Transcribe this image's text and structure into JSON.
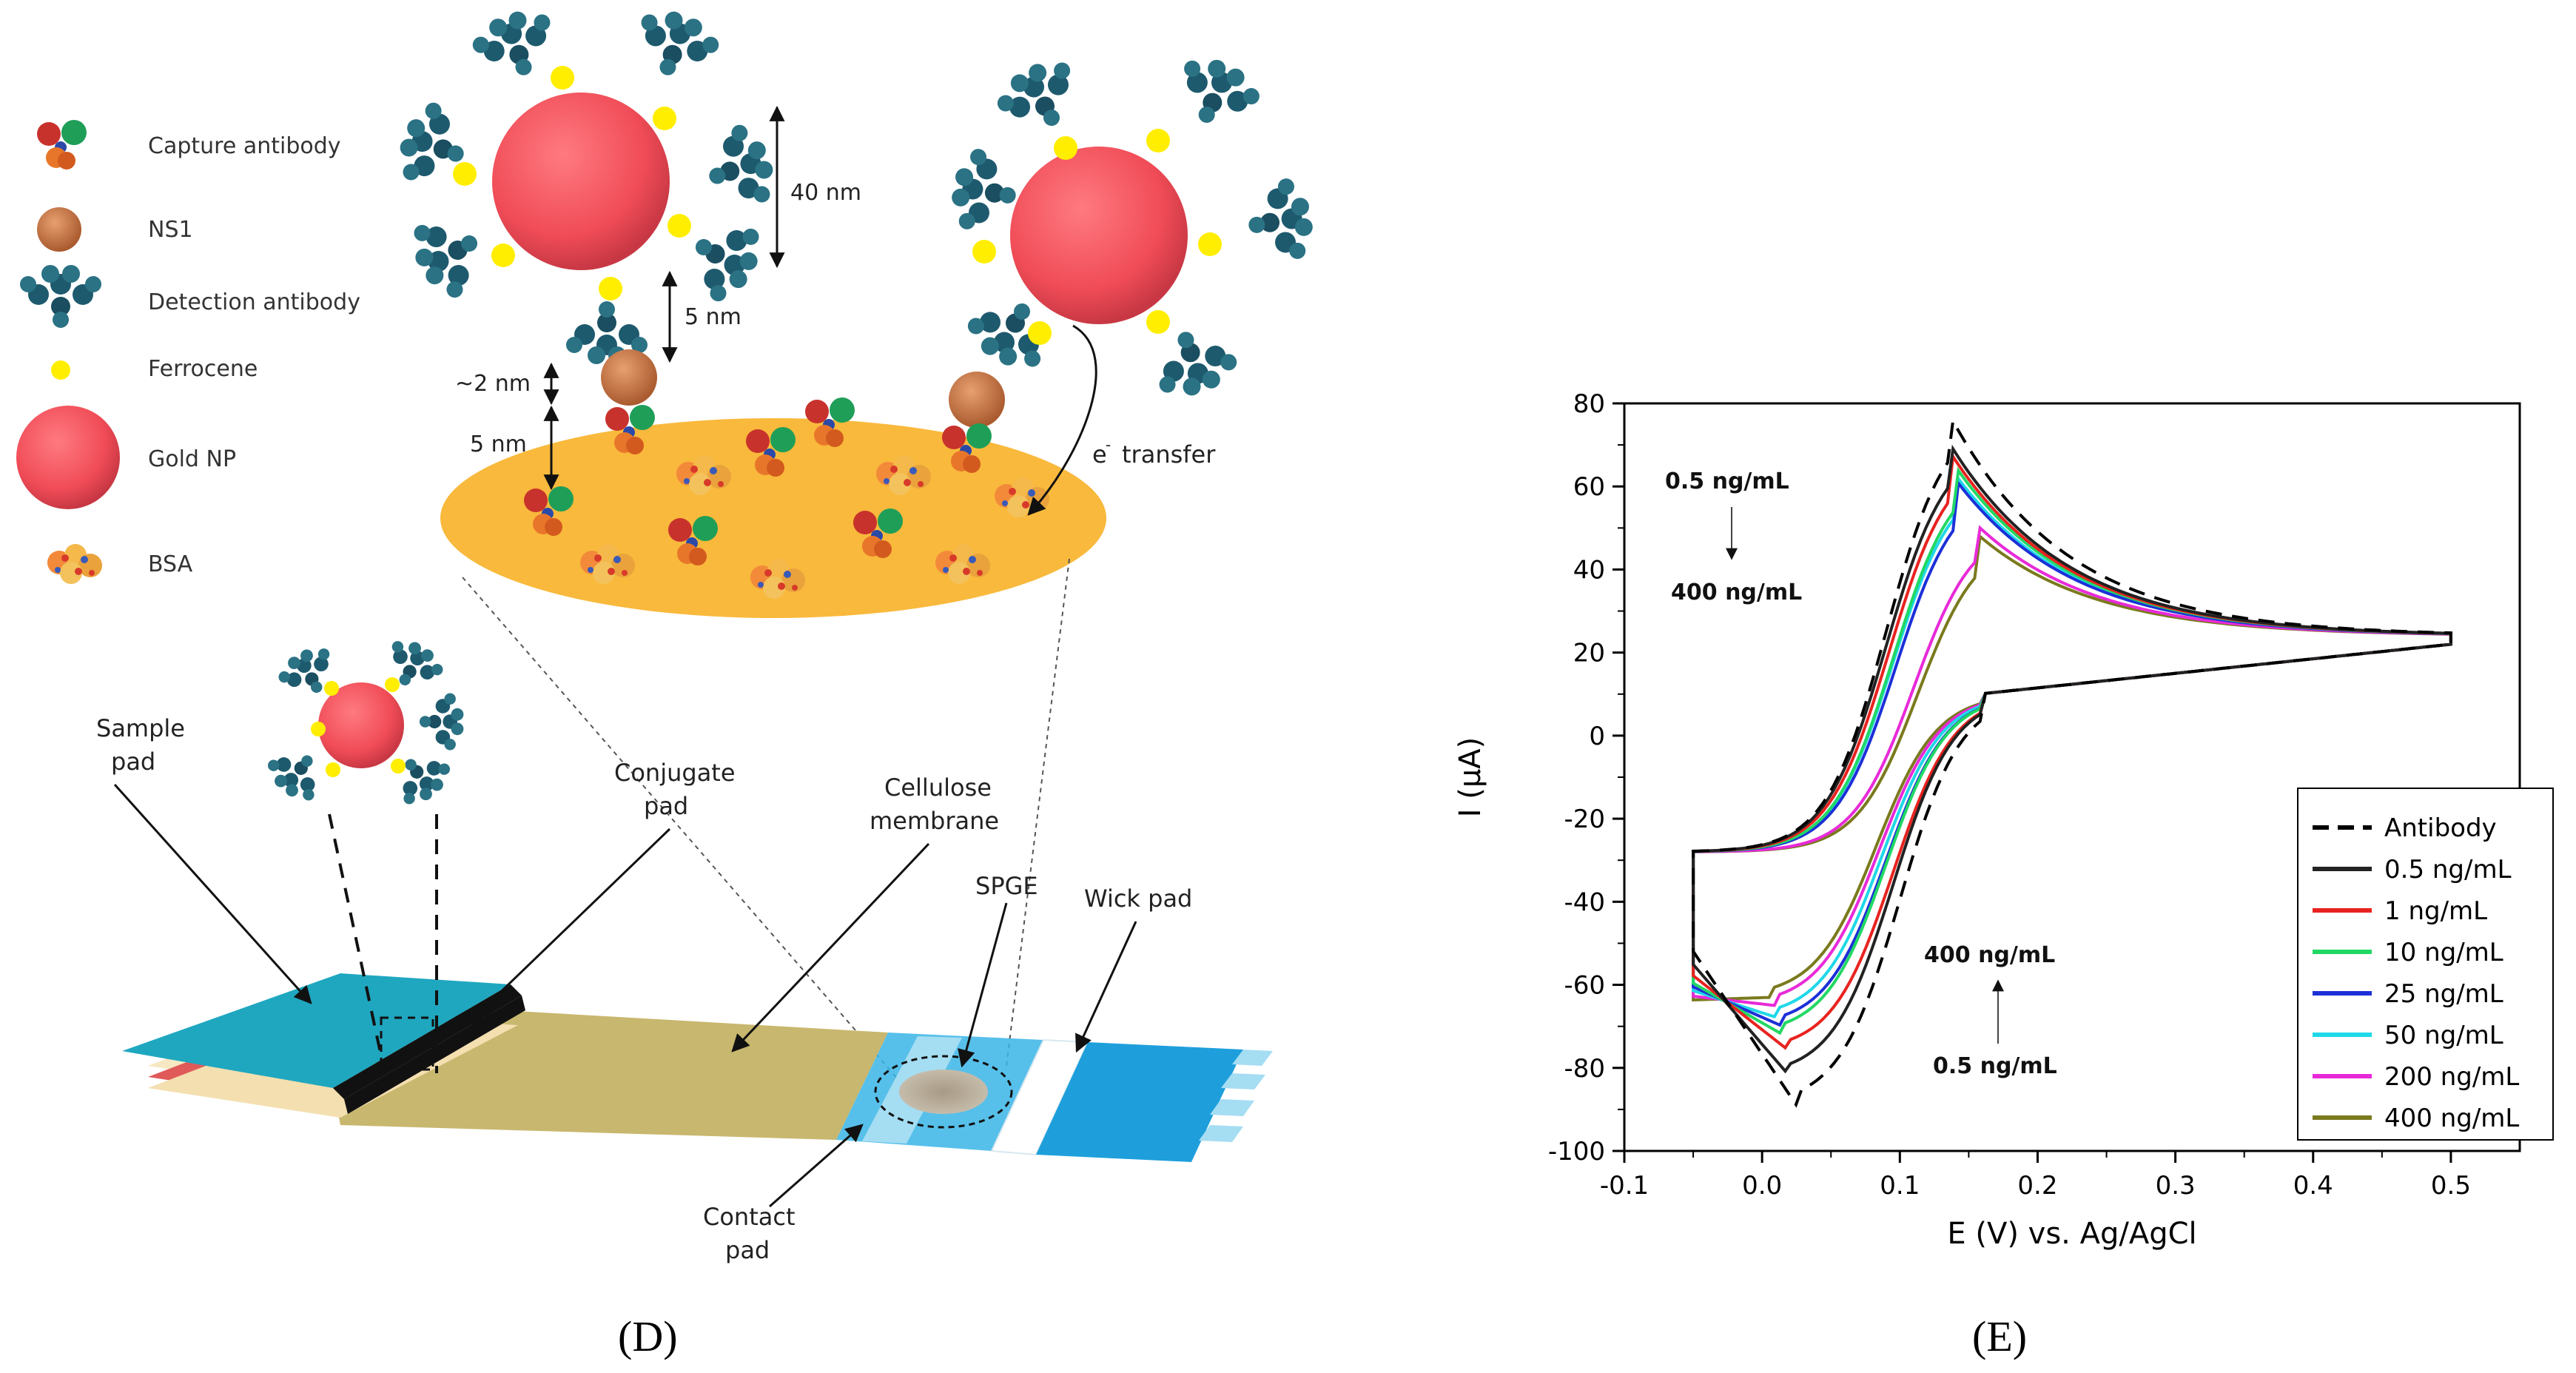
{
  "panels": {
    "left_label": "(D)",
    "right_label": "(E)"
  },
  "legend_d": {
    "items": [
      {
        "label": "Capture antibody",
        "icon": "capture-antibody-icon"
      },
      {
        "label": "NS1",
        "icon": "ns1-icon"
      },
      {
        "label": "Detection antibody",
        "icon": "detection-antibody-icon"
      },
      {
        "label": "Ferrocene",
        "icon": "ferrocene-icon"
      },
      {
        "label": "Gold NP",
        "icon": "gold-np-icon"
      },
      {
        "label": "BSA",
        "icon": "bsa-icon"
      }
    ]
  },
  "dimensions": {
    "d40": "40 nm",
    "d5a": "5 nm",
    "d2": "~2 nm",
    "d5b": "5 nm",
    "transfer_e": "e",
    "transfer_sup": "-",
    "transfer_word": "transfer"
  },
  "strip_labels": {
    "sample_1": "Sample",
    "sample_2": "pad",
    "conjugate_1": "Conjugate",
    "conjugate_2": "pad",
    "cellulose_1": "Cellulose",
    "cellulose_2": "membrane",
    "spge": "SPGE",
    "wick": "Wick pad",
    "contact_1": "Contact",
    "contact_2": "pad"
  },
  "colors": {
    "gold_np": "#f05560",
    "antibody_dark": "#1e5a6e",
    "ferrocene": "#ffee00",
    "ns1": "#c77a4a",
    "electrode": "#f9b93c",
    "sample_pad": "#1fa7c0",
    "membrane": "#c8b76e",
    "contact": "#3ab5e6"
  },
  "chart_data": {
    "type": "line",
    "xlabel": "E (V) vs. Ag/AgCl",
    "ylabel": "I (μA)",
    "xlim": [
      -0.1,
      0.55
    ],
    "ylim": [
      -100,
      80
    ],
    "xticks": [
      "-0.1",
      "0.0",
      "0.1",
      "0.2",
      "0.3",
      "0.4",
      "0.5"
    ],
    "yticks": [
      "80",
      "60",
      "40",
      "20",
      "0",
      "-20",
      "-40",
      "-60",
      "-80",
      "-100"
    ],
    "legend_position": "bottom-right",
    "annotations": {
      "top_from": "0.5 ng/mL",
      "top_to": "400 ng/mL",
      "bottom_from": "400 ng/mL",
      "bottom_to": "0.5 ng/mL"
    },
    "series": [
      {
        "name": "Antibody",
        "color": "#000000",
        "dashed": true,
        "ipa": 78,
        "ipc": -89,
        "epa": 0.135,
        "epc": 0.025
      },
      {
        "name": "0.5 ng/mL",
        "color": "#222222",
        "dashed": false,
        "ipa": 71,
        "ipc": -82,
        "epa": 0.135,
        "epc": 0.02
      },
      {
        "name": "1 ng/mL",
        "color": "#e8231f",
        "dashed": false,
        "ipa": 68,
        "ipc": -76,
        "epa": 0.137,
        "epc": 0.02
      },
      {
        "name": "10 ng/mL",
        "color": "#21d864",
        "dashed": false,
        "ipa": 65,
        "ipc": -72,
        "epa": 0.14,
        "epc": 0.015
      },
      {
        "name": "25 ng/mL",
        "color": "#1c30d8",
        "dashed": false,
        "ipa": 61,
        "ipc": -70,
        "epa": 0.142,
        "epc": 0.015
      },
      {
        "name": "50 ng/mL",
        "color": "#1fd8e8",
        "dashed": false,
        "ipa": 63,
        "ipc": -68,
        "epa": 0.14,
        "epc": 0.012
      },
      {
        "name": "200 ng/mL",
        "color": "#e82ad8",
        "dashed": false,
        "ipa": 51,
        "ipc": -65,
        "epa": 0.155,
        "epc": 0.01
      },
      {
        "name": "400 ng/mL",
        "color": "#7a7a1e",
        "dashed": false,
        "ipa": 48,
        "ipc": -63,
        "epa": 0.158,
        "epc": 0.008
      }
    ],
    "e_start": -0.05,
    "e_end": 0.5
  }
}
